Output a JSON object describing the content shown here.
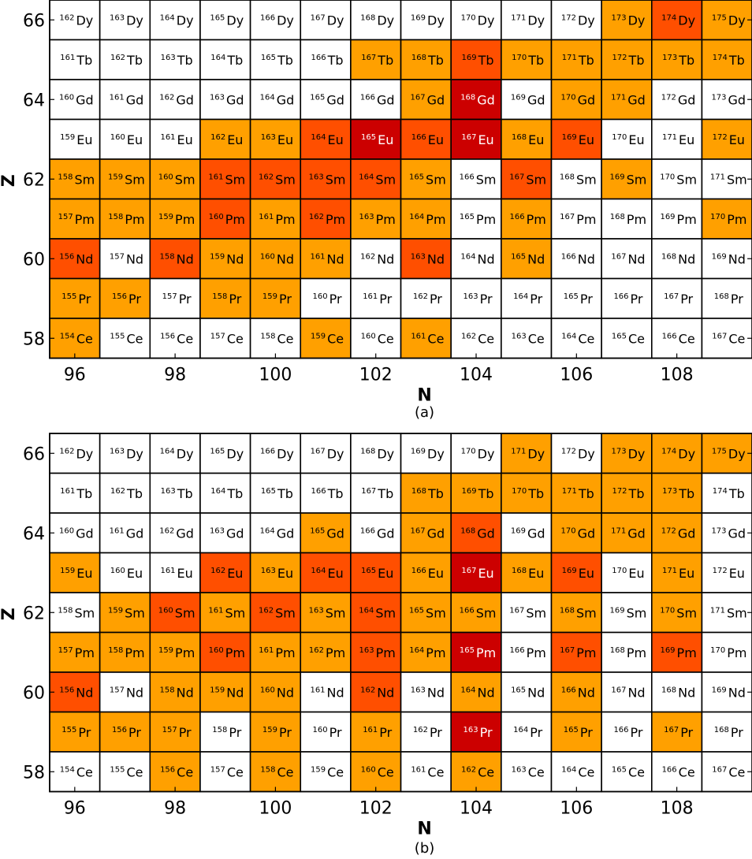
{
  "colors": {
    "white": "#ffffff",
    "orange": "#ffa000",
    "orange_red": "#ff4f00",
    "dark_red": "#cc0000"
  },
  "chart_data": [
    {
      "type": "heatmap",
      "caption": "(a)",
      "xlabel": "N",
      "ylabel": "Z",
      "x_ticks": [
        "96",
        "98",
        "100",
        "102",
        "104",
        "106",
        "108"
      ],
      "y_ticks": [
        "58",
        "60",
        "62",
        "64",
        "66"
      ],
      "x_range": [
        96,
        109
      ],
      "z_range": [
        58,
        66
      ],
      "elements": [
        {
          "z": 58,
          "symbol": "Ce"
        },
        {
          "z": 59,
          "symbol": "Pr"
        },
        {
          "z": 60,
          "symbol": "Nd"
        },
        {
          "z": 61,
          "symbol": "Pm"
        },
        {
          "z": 62,
          "symbol": "Sm"
        },
        {
          "z": 63,
          "symbol": "Eu"
        },
        {
          "z": 64,
          "symbol": "Gd"
        },
        {
          "z": 65,
          "symbol": "Tb"
        },
        {
          "z": 66,
          "symbol": "Dy"
        }
      ],
      "color_codes": [
        "white",
        "orange",
        "orange_red",
        "dark_red"
      ],
      "grid": [
        [
          0,
          0,
          0,
          0,
          0,
          0,
          0,
          0,
          0,
          0,
          0,
          1,
          2,
          1
        ],
        [
          0,
          0,
          0,
          0,
          0,
          0,
          1,
          1,
          2,
          1,
          1,
          1,
          1,
          1
        ],
        [
          0,
          0,
          0,
          0,
          0,
          0,
          0,
          1,
          3,
          0,
          1,
          1,
          0,
          0
        ],
        [
          0,
          0,
          0,
          1,
          1,
          2,
          3,
          2,
          3,
          1,
          2,
          0,
          0,
          1
        ],
        [
          1,
          1,
          1,
          2,
          2,
          2,
          2,
          1,
          0,
          2,
          0,
          1,
          0,
          0
        ],
        [
          1,
          1,
          1,
          2,
          1,
          2,
          1,
          1,
          0,
          1,
          0,
          0,
          0,
          1
        ],
        [
          2,
          0,
          2,
          1,
          1,
          1,
          0,
          2,
          0,
          1,
          0,
          0,
          0,
          0
        ],
        [
          1,
          1,
          0,
          1,
          1,
          0,
          0,
          0,
          0,
          0,
          0,
          0,
          0,
          0
        ],
        [
          1,
          0,
          0,
          0,
          0,
          1,
          0,
          1,
          0,
          0,
          0,
          0,
          0,
          0
        ]
      ]
    },
    {
      "type": "heatmap",
      "caption": "(b)",
      "xlabel": "N",
      "ylabel": "Z",
      "x_ticks": [
        "96",
        "98",
        "100",
        "102",
        "104",
        "106",
        "108"
      ],
      "y_ticks": [
        "58",
        "60",
        "62",
        "64",
        "66"
      ],
      "x_range": [
        96,
        109
      ],
      "z_range": [
        58,
        66
      ],
      "elements": [
        {
          "z": 58,
          "symbol": "Ce"
        },
        {
          "z": 59,
          "symbol": "Pr"
        },
        {
          "z": 60,
          "symbol": "Nd"
        },
        {
          "z": 61,
          "symbol": "Pm"
        },
        {
          "z": 62,
          "symbol": "Sm"
        },
        {
          "z": 63,
          "symbol": "Eu"
        },
        {
          "z": 64,
          "symbol": "Gd"
        },
        {
          "z": 65,
          "symbol": "Tb"
        },
        {
          "z": 66,
          "symbol": "Dy"
        }
      ],
      "color_codes": [
        "white",
        "orange",
        "orange_red",
        "dark_red"
      ],
      "grid": [
        [
          0,
          0,
          0,
          0,
          0,
          0,
          0,
          0,
          0,
          1,
          0,
          1,
          1,
          1
        ],
        [
          0,
          0,
          0,
          0,
          0,
          0,
          0,
          1,
          1,
          1,
          1,
          1,
          1,
          0
        ],
        [
          0,
          0,
          0,
          0,
          0,
          1,
          0,
          1,
          2,
          0,
          1,
          1,
          1,
          0
        ],
        [
          1,
          0,
          0,
          2,
          1,
          2,
          2,
          1,
          3,
          1,
          2,
          0,
          1,
          0
        ],
        [
          0,
          1,
          2,
          1,
          2,
          1,
          2,
          1,
          1,
          0,
          1,
          0,
          1,
          0
        ],
        [
          1,
          1,
          1,
          2,
          1,
          1,
          2,
          1,
          3,
          0,
          2,
          0,
          2,
          0
        ],
        [
          2,
          0,
          1,
          1,
          1,
          0,
          2,
          0,
          1,
          0,
          1,
          0,
          0,
          0
        ],
        [
          1,
          1,
          1,
          0,
          1,
          0,
          1,
          0,
          3,
          0,
          1,
          0,
          1,
          0
        ],
        [
          0,
          0,
          1,
          0,
          1,
          0,
          1,
          0,
          1,
          0,
          0,
          0,
          0,
          0
        ]
      ]
    }
  ]
}
